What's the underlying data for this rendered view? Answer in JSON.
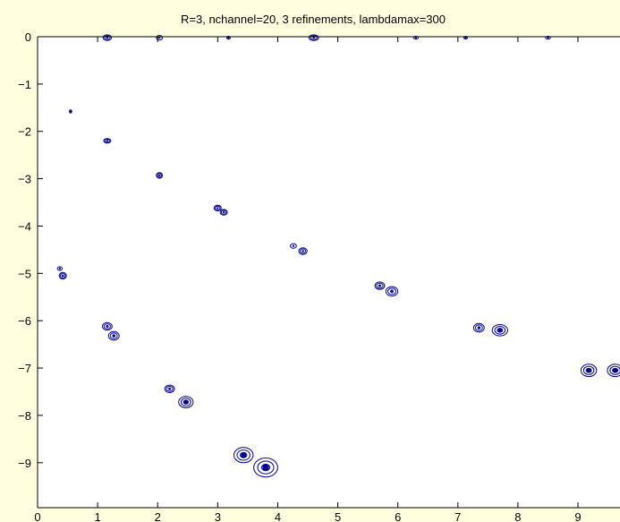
{
  "chart_data": {
    "type": "contour",
    "title": "R=3, nchannel=20, 3 refinements, lambdamax=300",
    "xlabel": "",
    "ylabel": "",
    "xlim": [
      0,
      9.7
    ],
    "ylim": [
      -9.95,
      0
    ],
    "xticks": [
      0,
      1,
      2,
      3,
      4,
      5,
      6,
      7,
      8,
      9
    ],
    "yticks": [
      0,
      -1,
      -2,
      -3,
      -4,
      -5,
      -6,
      -7,
      -8,
      -9
    ],
    "grid": false,
    "legend": "none",
    "colors": {
      "contour": "#00008b",
      "axes": "#000000",
      "background": "#ffffe0",
      "plot_area": "#ffffff"
    },
    "contour_features": [
      {
        "x": 0.55,
        "y": -1.58,
        "rx": 0.02,
        "ry": 0.03,
        "levels": 1
      },
      {
        "x": 1.16,
        "y": -2.2,
        "rx": 0.06,
        "ry": 0.05,
        "levels": 2
      },
      {
        "x": 2.03,
        "y": -2.93,
        "rx": 0.05,
        "ry": 0.06,
        "levels": 2
      },
      {
        "x": 3.0,
        "y": -3.62,
        "rx": 0.06,
        "ry": 0.06,
        "levels": 2
      },
      {
        "x": 3.1,
        "y": -3.71,
        "rx": 0.06,
        "ry": 0.06,
        "levels": 2
      },
      {
        "x": 4.26,
        "y": -4.42,
        "rx": 0.05,
        "ry": 0.05,
        "levels": 1
      },
      {
        "x": 4.42,
        "y": -4.53,
        "rx": 0.07,
        "ry": 0.07,
        "levels": 2
      },
      {
        "x": 0.37,
        "y": -4.9,
        "rx": 0.04,
        "ry": 0.04,
        "levels": 1
      },
      {
        "x": 0.42,
        "y": -5.05,
        "rx": 0.06,
        "ry": 0.07,
        "levels": 2
      },
      {
        "x": 5.7,
        "y": -5.26,
        "rx": 0.08,
        "ry": 0.08,
        "levels": 2
      },
      {
        "x": 5.9,
        "y": -5.38,
        "rx": 0.1,
        "ry": 0.1,
        "levels": 2
      },
      {
        "x": 1.16,
        "y": -6.12,
        "rx": 0.08,
        "ry": 0.08,
        "levels": 2
      },
      {
        "x": 1.27,
        "y": -6.32,
        "rx": 0.09,
        "ry": 0.09,
        "levels": 2
      },
      {
        "x": 7.35,
        "y": -6.15,
        "rx": 0.09,
        "ry": 0.09,
        "levels": 2
      },
      {
        "x": 7.7,
        "y": -6.2,
        "rx": 0.13,
        "ry": 0.12,
        "levels": 3
      },
      {
        "x": 9.18,
        "y": -7.05,
        "rx": 0.13,
        "ry": 0.13,
        "levels": 3
      },
      {
        "x": 9.62,
        "y": -7.05,
        "rx": 0.13,
        "ry": 0.13,
        "levels": 3
      },
      {
        "x": 2.2,
        "y": -7.44,
        "rx": 0.08,
        "ry": 0.08,
        "levels": 2
      },
      {
        "x": 2.47,
        "y": -7.72,
        "rx": 0.12,
        "ry": 0.12,
        "levels": 3
      },
      {
        "x": 3.43,
        "y": -8.84,
        "rx": 0.16,
        "ry": 0.16,
        "levels": 3
      },
      {
        "x": 3.8,
        "y": -9.1,
        "rx": 0.2,
        "ry": 0.2,
        "levels": 3
      },
      {
        "x": 1.16,
        "y": -0.02,
        "rx": 0.07,
        "ry": 0.06,
        "levels": 2
      },
      {
        "x": 2.03,
        "y": -0.02,
        "rx": 0.05,
        "ry": 0.05,
        "levels": 1
      },
      {
        "x": 3.18,
        "y": -0.02,
        "rx": 0.03,
        "ry": 0.03,
        "levels": 1
      },
      {
        "x": 4.6,
        "y": -0.02,
        "rx": 0.08,
        "ry": 0.06,
        "levels": 2
      },
      {
        "x": 6.3,
        "y": -0.02,
        "rx": 0.04,
        "ry": 0.03,
        "levels": 1
      },
      {
        "x": 7.13,
        "y": -0.02,
        "rx": 0.03,
        "ry": 0.03,
        "levels": 1
      },
      {
        "x": 8.5,
        "y": -0.02,
        "rx": 0.04,
        "ry": 0.03,
        "levels": 1
      }
    ]
  }
}
